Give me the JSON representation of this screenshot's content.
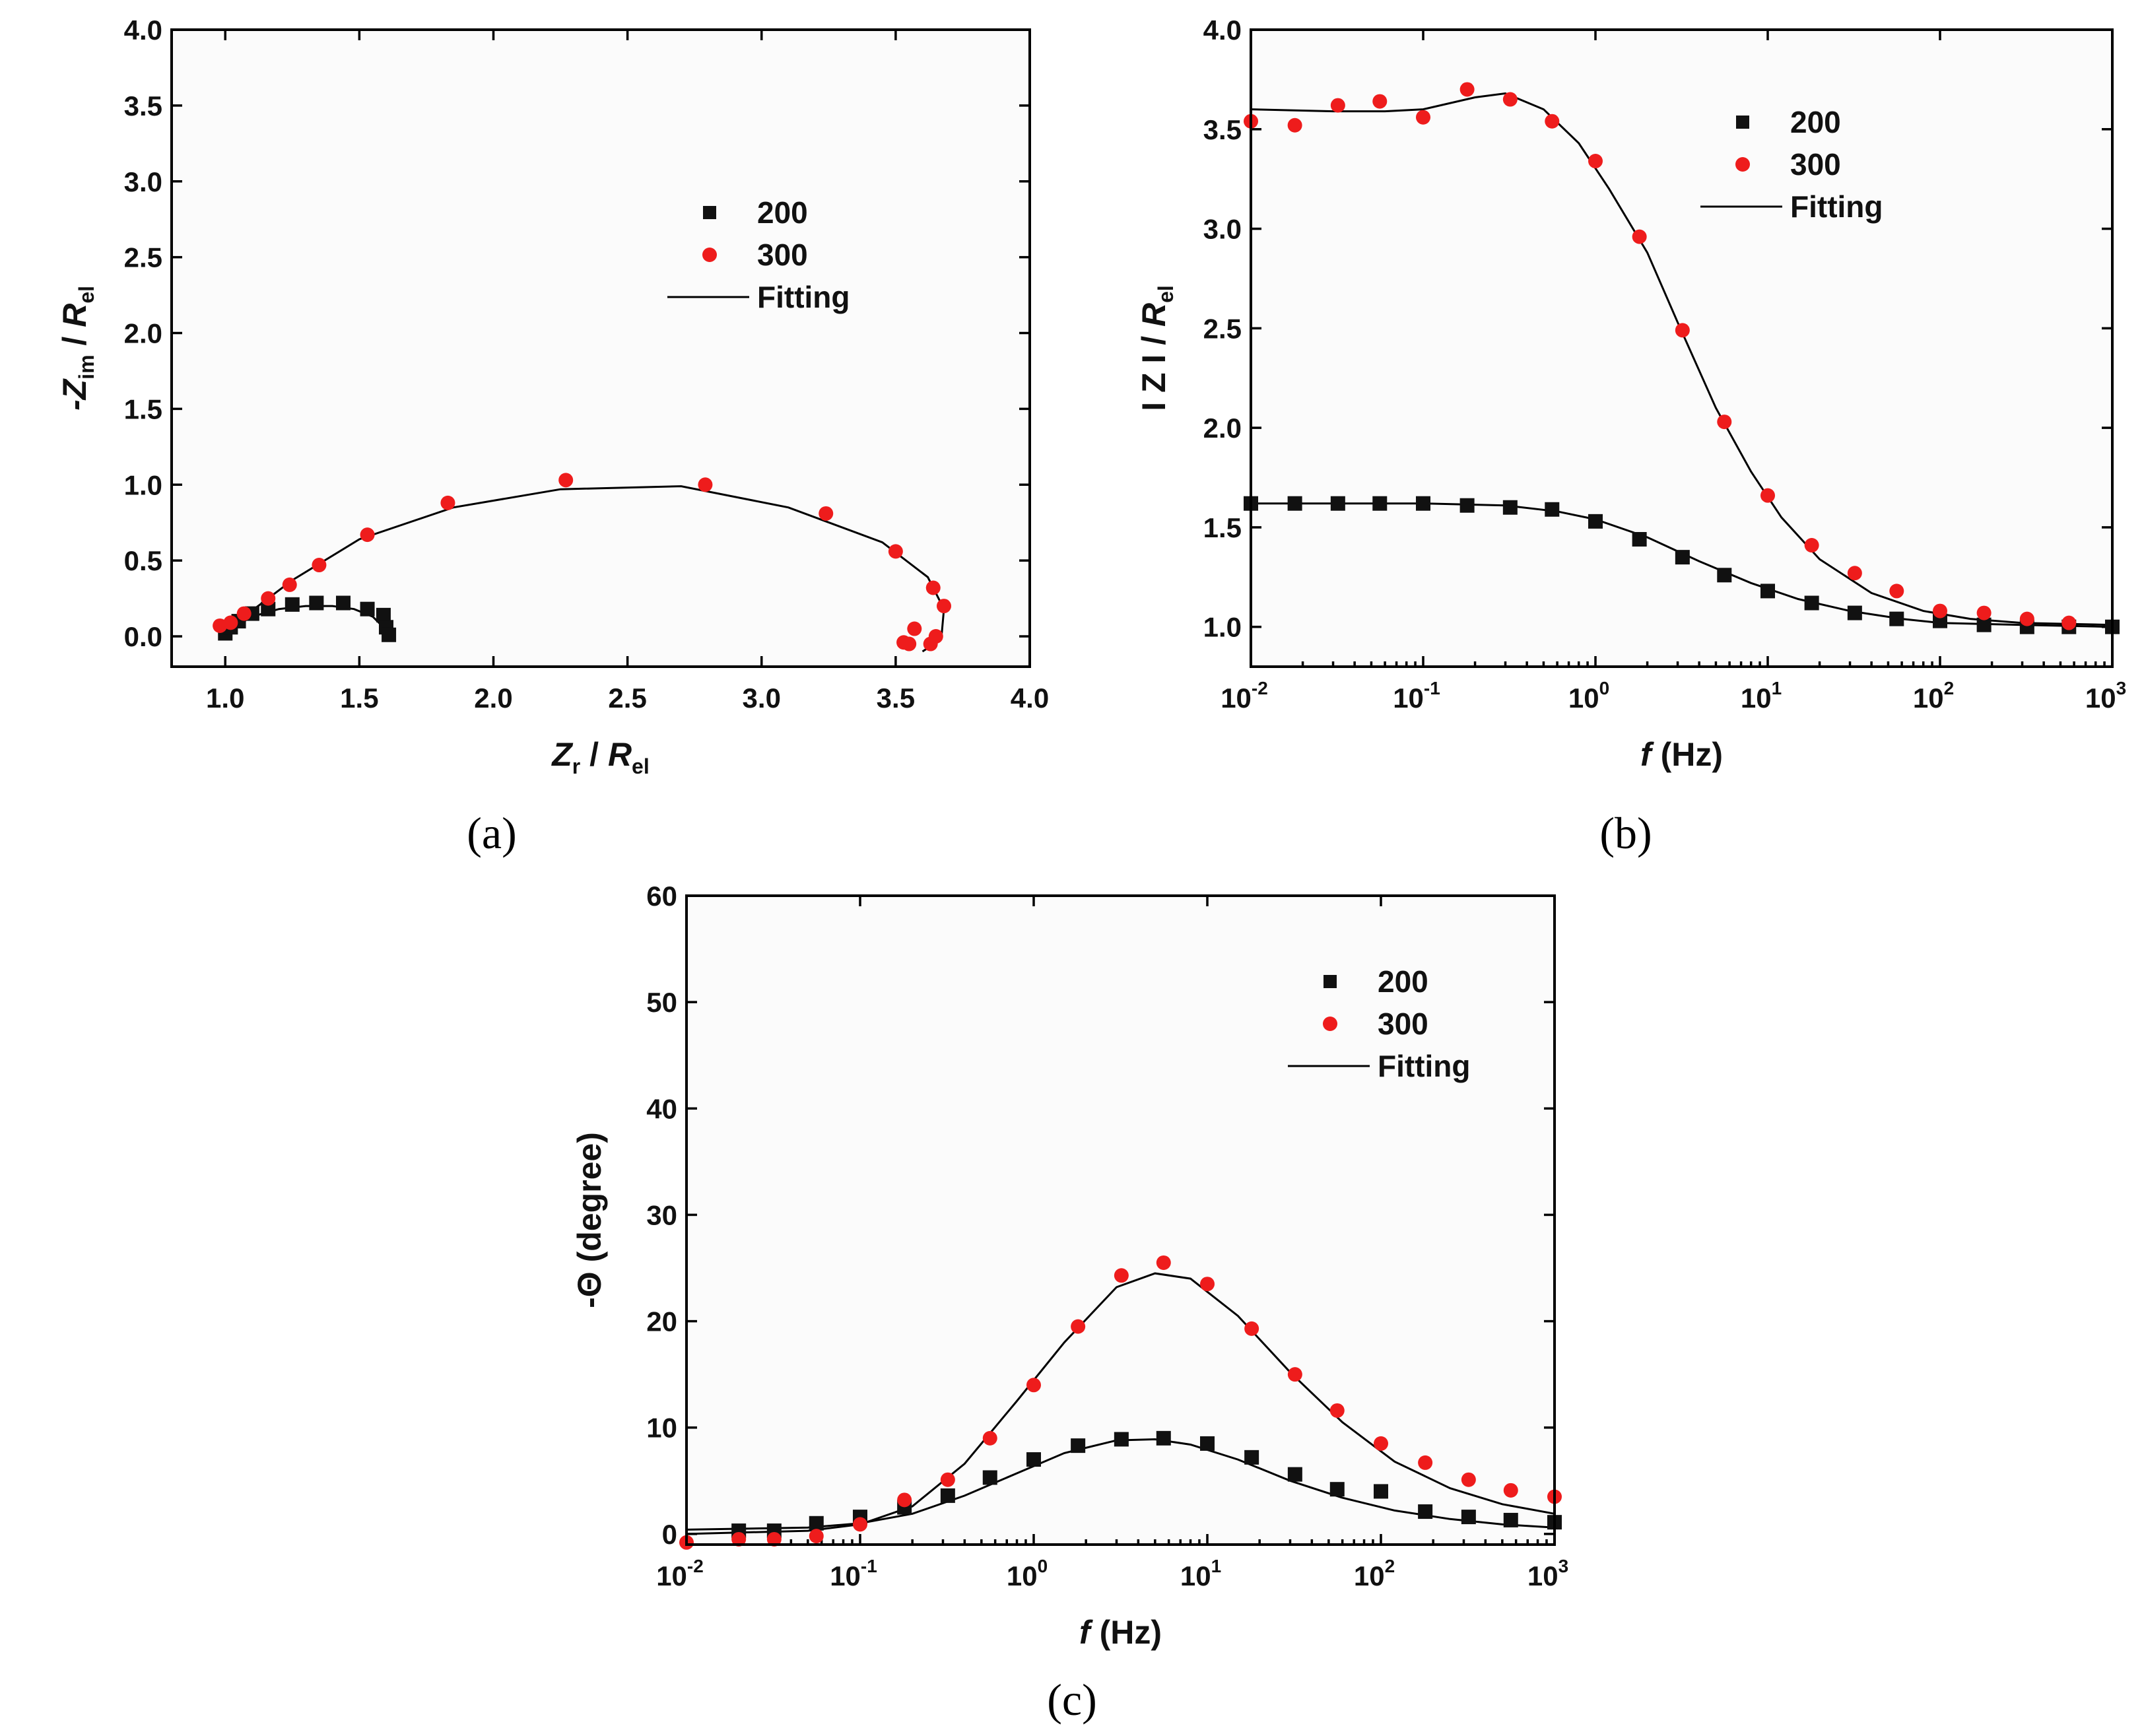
{
  "figure": {
    "captions": [
      "(a)",
      "(b)",
      "(c)"
    ]
  },
  "chart_data": [
    {
      "panel": "(a)",
      "type": "scatter",
      "xlabel_main": "Z",
      "xlabel_sub": "r",
      "xlabel_mid": " / ",
      "xlabel_r": "R",
      "xlabel_r_sub": "el",
      "ylabel_main": "-Z",
      "ylabel_sub": "im",
      "ylabel_mid": " / ",
      "ylabel_r": "R",
      "ylabel_r_sub": "el",
      "xlim": [
        0.8,
        4.0
      ],
      "ylim": [
        -0.2,
        4.0
      ],
      "xticks": [
        1.0,
        1.5,
        2.0,
        2.5,
        3.0,
        3.5,
        4.0
      ],
      "xtick_labels": [
        "1.0",
        "1.5",
        "2.0",
        "2.5",
        "3.0",
        "3.5",
        "4.0"
      ],
      "yticks": [
        0.0,
        0.5,
        1.0,
        1.5,
        2.0,
        2.5,
        3.0,
        3.5,
        4.0
      ],
      "ytick_labels": [
        "0.0",
        "0.5",
        "1.0",
        "1.5",
        "2.0",
        "2.5",
        "3.0",
        "3.5",
        "4.0"
      ],
      "legend": [
        "200",
        "300",
        "Fitting"
      ],
      "legend_position": "upper-right",
      "series": [
        {
          "name": "200",
          "marker": "square",
          "color": "#111111",
          "x": [
            1.0,
            1.02,
            1.05,
            1.1,
            1.16,
            1.25,
            1.34,
            1.44,
            1.53,
            1.59,
            1.6,
            1.61
          ],
          "y": [
            0.02,
            0.06,
            0.1,
            0.15,
            0.18,
            0.21,
            0.22,
            0.22,
            0.18,
            0.14,
            0.06,
            0.01
          ]
        },
        {
          "name": "300",
          "marker": "circle",
          "color": "#ee1c1c",
          "x": [
            0.98,
            1.02,
            1.07,
            1.16,
            1.24,
            1.35,
            1.53,
            1.83,
            2.27,
            2.79,
            3.24,
            3.5,
            3.64,
            3.68,
            3.65,
            3.63,
            3.57,
            3.53,
            3.55
          ],
          "y": [
            0.07,
            0.09,
            0.15,
            0.25,
            0.34,
            0.47,
            0.67,
            0.88,
            1.03,
            1.0,
            0.81,
            0.56,
            0.32,
            0.2,
            0.0,
            -0.05,
            0.05,
            -0.04,
            -0.05
          ]
        },
        {
          "name": "Fitting 200",
          "type": "line",
          "color": "#000000",
          "x": [
            1.0,
            1.05,
            1.1,
            1.2,
            1.3,
            1.4,
            1.48,
            1.55,
            1.59,
            1.6
          ],
          "y": [
            0.0,
            0.08,
            0.13,
            0.18,
            0.2,
            0.2,
            0.18,
            0.13,
            0.06,
            0.0
          ]
        },
        {
          "name": "Fitting 300",
          "type": "line",
          "color": "#000000",
          "x": [
            1.0,
            1.1,
            1.25,
            1.5,
            1.85,
            2.25,
            2.7,
            3.1,
            3.45,
            3.62,
            3.68,
            3.67,
            3.6
          ],
          "y": [
            0.05,
            0.17,
            0.37,
            0.64,
            0.85,
            0.97,
            0.99,
            0.85,
            0.62,
            0.39,
            0.18,
            -0.02,
            -0.1
          ]
        }
      ]
    },
    {
      "panel": "(b)",
      "type": "scatter",
      "xscale": "log",
      "xlabel_main": "f",
      "xlabel_unit": " (Hz)",
      "ylabel": "I Z I / ",
      "ylabel_r": "R",
      "ylabel_r_sub": "el",
      "xlim": [
        0.01,
        1000
      ],
      "ylim": [
        0.8,
        4.0
      ],
      "xticks": [
        0.01,
        0.1,
        1,
        10,
        100,
        1000
      ],
      "xtick_base": [
        "10",
        "10",
        "10",
        "10",
        "10",
        "10"
      ],
      "xtick_exp": [
        "-2",
        "-1",
        "0",
        "1",
        "2",
        "3"
      ],
      "yticks": [
        1.0,
        1.5,
        2.0,
        2.5,
        3.0,
        3.5,
        4.0
      ],
      "ytick_labels": [
        "1.0",
        "1.5",
        "2.0",
        "2.5",
        "3.0",
        "3.5",
        "4.0"
      ],
      "legend": [
        "200",
        "300",
        "Fitting"
      ],
      "legend_position": "upper-right",
      "series": [
        {
          "name": "200",
          "marker": "square",
          "color": "#111111",
          "x": [
            0.01,
            0.018,
            0.032,
            0.056,
            0.1,
            0.18,
            0.32,
            0.56,
            1.0,
            1.8,
            3.2,
            5.6,
            10,
            18,
            32,
            56,
            100,
            180,
            320,
            560,
            1000
          ],
          "y": [
            1.62,
            1.62,
            1.62,
            1.62,
            1.62,
            1.61,
            1.6,
            1.59,
            1.53,
            1.44,
            1.35,
            1.26,
            1.18,
            1.12,
            1.07,
            1.04,
            1.03,
            1.01,
            1.0,
            1.0,
            1.0
          ]
        },
        {
          "name": "300",
          "marker": "circle",
          "color": "#ee1c1c",
          "x": [
            0.01,
            0.018,
            0.032,
            0.056,
            0.1,
            0.18,
            0.32,
            0.56,
            1.0,
            1.8,
            3.2,
            5.6,
            10,
            18,
            32,
            56,
            100,
            180,
            320,
            560
          ],
          "y": [
            3.54,
            3.52,
            3.62,
            3.64,
            3.56,
            3.7,
            3.65,
            3.54,
            3.34,
            2.96,
            2.49,
            2.03,
            1.66,
            1.41,
            1.27,
            1.18,
            1.08,
            1.07,
            1.04,
            1.02
          ]
        },
        {
          "name": "Fitting 200",
          "type": "line",
          "color": "#000000",
          "x": [
            0.01,
            0.1,
            0.3,
            0.6,
            1.0,
            2.0,
            4.0,
            8.0,
            15,
            30,
            60,
            100,
            300,
            1000
          ],
          "y": [
            1.62,
            1.62,
            1.61,
            1.58,
            1.54,
            1.45,
            1.33,
            1.22,
            1.14,
            1.08,
            1.04,
            1.02,
            1.01,
            1.0
          ]
        },
        {
          "name": "Fitting 300",
          "type": "line",
          "color": "#000000",
          "x": [
            0.01,
            0.03,
            0.06,
            0.1,
            0.2,
            0.3,
            0.5,
            0.8,
            1.2,
            2.0,
            3.0,
            5.0,
            8.0,
            12,
            20,
            40,
            80,
            150,
            300,
            1000
          ],
          "y": [
            3.6,
            3.59,
            3.59,
            3.6,
            3.66,
            3.68,
            3.6,
            3.43,
            3.2,
            2.88,
            2.53,
            2.1,
            1.78,
            1.55,
            1.34,
            1.17,
            1.08,
            1.04,
            1.02,
            1.01
          ]
        }
      ]
    },
    {
      "panel": "(c)",
      "type": "scatter",
      "xscale": "log",
      "xlabel_main": "f",
      "xlabel_unit": "  (Hz)",
      "ylabel": "-Θ (degree)",
      "xlim": [
        0.01,
        1000
      ],
      "ylim": [
        -1,
        60
      ],
      "xticks": [
        0.01,
        0.1,
        1,
        10,
        100,
        1000
      ],
      "xtick_base": [
        "10",
        "10",
        "10",
        "10",
        "10",
        "10"
      ],
      "xtick_exp": [
        "-2",
        "-1",
        "0",
        "1",
        "2",
        "3"
      ],
      "yticks": [
        0,
        10,
        20,
        30,
        40,
        50,
        60
      ],
      "ytick_labels": [
        "0",
        "10",
        "20",
        "30",
        "40",
        "50",
        "60"
      ],
      "legend": [
        "200",
        "300",
        "Fitting"
      ],
      "legend_position": "upper-right",
      "series": [
        {
          "name": "200",
          "marker": "square",
          "color": "#111111",
          "x": [
            0.02,
            0.032,
            0.056,
            0.1,
            0.18,
            0.32,
            0.56,
            1.0,
            1.8,
            3.2,
            5.6,
            10,
            18,
            32,
            56,
            100,
            180,
            320,
            560,
            1000
          ],
          "y": [
            0.3,
            0.3,
            1.0,
            1.6,
            2.5,
            3.6,
            5.3,
            7.0,
            8.3,
            8.9,
            9.0,
            8.5,
            7.2,
            5.6,
            4.2,
            4.0,
            2.1,
            1.6,
            1.3,
            1.1
          ]
        },
        {
          "name": "300",
          "marker": "circle",
          "color": "#ee1c1c",
          "x": [
            0.01,
            0.02,
            0.032,
            0.056,
            0.1,
            0.18,
            0.32,
            0.56,
            1.0,
            1.8,
            3.2,
            5.6,
            10,
            18,
            32,
            56,
            100,
            180,
            320,
            560,
            1000
          ],
          "y": [
            -0.8,
            -0.5,
            -0.5,
            -0.2,
            0.9,
            3.2,
            5.1,
            9.0,
            14.0,
            19.5,
            24.3,
            25.5,
            23.5,
            19.3,
            15.0,
            11.6,
            8.5,
            6.7,
            5.1,
            4.1,
            3.5
          ]
        },
        {
          "name": "Fitting 200",
          "type": "line",
          "color": "#000000",
          "x": [
            0.01,
            0.05,
            0.1,
            0.2,
            0.4,
            0.8,
            1.5,
            3.0,
            5.0,
            8.0,
            15,
            30,
            60,
            120,
            250,
            500,
            1000
          ],
          "y": [
            0.4,
            0.6,
            1.0,
            1.9,
            3.6,
            5.7,
            7.6,
            8.8,
            8.9,
            8.4,
            7.0,
            5.0,
            3.4,
            2.2,
            1.4,
            0.9,
            0.6
          ]
        },
        {
          "name": "Fitting 300",
          "type": "line",
          "color": "#000000",
          "x": [
            0.01,
            0.05,
            0.1,
            0.2,
            0.4,
            0.8,
            1.5,
            3.0,
            5.0,
            8.0,
            15,
            30,
            60,
            120,
            250,
            500,
            1000
          ],
          "y": [
            0.0,
            0.3,
            0.9,
            2.6,
            6.6,
            12.5,
            18.0,
            23.2,
            24.5,
            24.0,
            20.5,
            15.2,
            10.5,
            6.8,
            4.3,
            2.8,
            1.9
          ]
        }
      ]
    }
  ]
}
